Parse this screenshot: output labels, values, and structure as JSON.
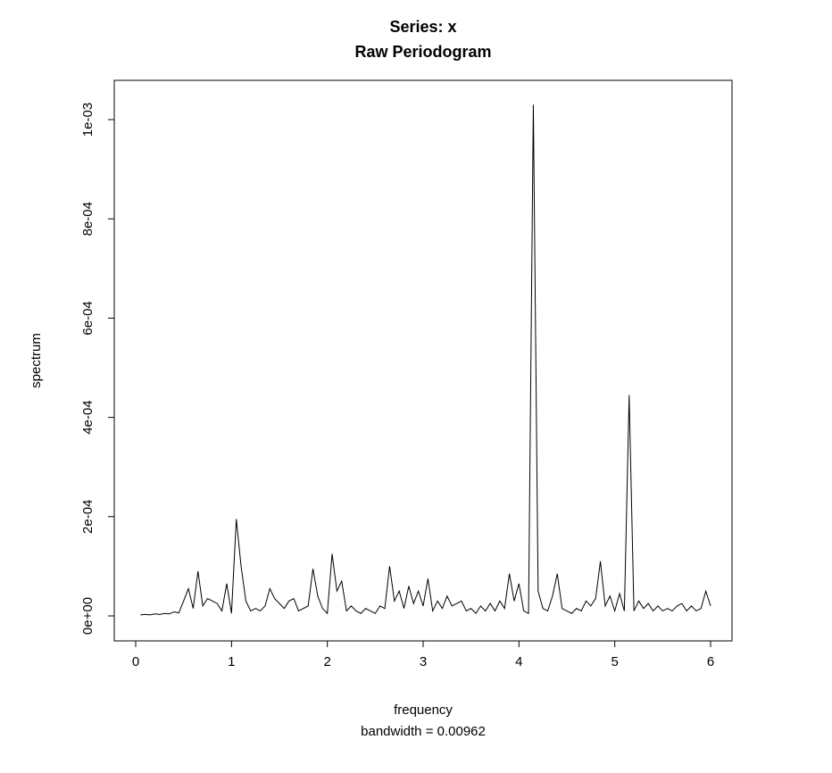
{
  "chart_data": {
    "type": "line",
    "title": "Series: x",
    "title_line2": "Raw Periodogram",
    "xlabel": "frequency",
    "ylabel": "spectrum",
    "caption": "bandwidth = 0.00962",
    "xlim": [
      0,
      6
    ],
    "ylim": [
      0,
      0.00103
    ],
    "grid": false,
    "legend": null,
    "line_color": "#000000",
    "background_color": "#ffffff",
    "x_ticks": {
      "values": [
        0,
        1,
        2,
        3,
        4,
        5,
        6
      ],
      "labels": [
        "0",
        "1",
        "2",
        "3",
        "4",
        "5",
        "6"
      ]
    },
    "y_ticks": {
      "values": [
        0,
        0.0002,
        0.0004,
        0.0006,
        0.0008,
        0.001
      ],
      "labels": [
        "0e+00",
        "2e-04",
        "4e-04",
        "6e-04",
        "8e-04",
        "1e-03"
      ]
    },
    "x": [
      0.05,
      0.1,
      0.15,
      0.2,
      0.25,
      0.3,
      0.35,
      0.4,
      0.45,
      0.5,
      0.55,
      0.6,
      0.65,
      0.7,
      0.75,
      0.8,
      0.85,
      0.9,
      0.95,
      1,
      1.05,
      1.1,
      1.15,
      1.2,
      1.25,
      1.3,
      1.35,
      1.4,
      1.45,
      1.5,
      1.55,
      1.6,
      1.65,
      1.7,
      1.75,
      1.8,
      1.85,
      1.9,
      1.95,
      2,
      2.05,
      2.1,
      2.15,
      2.2,
      2.25,
      2.3,
      2.35,
      2.4,
      2.45,
      2.5,
      2.55,
      2.6,
      2.65,
      2.7,
      2.75,
      2.8,
      2.85,
      2.9,
      2.95,
      3,
      3.05,
      3.1,
      3.15,
      3.2,
      3.25,
      3.3,
      3.35,
      3.4,
      3.45,
      3.5,
      3.55,
      3.6,
      3.65,
      3.7,
      3.75,
      3.8,
      3.85,
      3.9,
      3.95,
      4,
      4.05,
      4.1,
      4.15,
      4.2,
      4.25,
      4.3,
      4.35,
      4.4,
      4.45,
      4.5,
      4.55,
      4.6,
      4.65,
      4.7,
      4.75,
      4.8,
      4.85,
      4.9,
      4.95,
      5,
      5.05,
      5.1,
      5.15,
      5.2,
      5.25,
      5.3,
      5.35,
      5.4,
      5.45,
      5.5,
      5.55,
      5.6,
      5.65,
      5.7,
      5.75,
      5.8,
      5.85,
      5.9,
      5.95,
      6
    ],
    "y": [
      2e-06,
      3e-06,
      2e-06,
      4e-06,
      3e-06,
      5e-06,
      4e-06,
      8e-06,
      6e-06,
      3e-05,
      5.5e-05,
      1.5e-05,
      9e-05,
      2e-05,
      3.5e-05,
      3e-05,
      2.5e-05,
      1e-05,
      6.5e-05,
      5e-06,
      0.000195,
      0.0001,
      3e-05,
      1e-05,
      1.5e-05,
      1e-05,
      2e-05,
      5.5e-05,
      3.5e-05,
      2.5e-05,
      1.5e-05,
      3e-05,
      3.5e-05,
      1e-05,
      1.5e-05,
      2e-05,
      9.5e-05,
      4e-05,
      1.5e-05,
      5e-06,
      0.000125,
      5e-05,
      7e-05,
      1e-05,
      2e-05,
      1e-05,
      5e-06,
      1.5e-05,
      1e-05,
      5e-06,
      2e-05,
      1.5e-05,
      0.0001,
      3e-05,
      5e-05,
      1.5e-05,
      6e-05,
      2.5e-05,
      5e-05,
      2e-05,
      7.5e-05,
      1e-05,
      3e-05,
      1.5e-05,
      4e-05,
      2e-05,
      2.5e-05,
      3e-05,
      1e-05,
      1.5e-05,
      5e-06,
      2e-05,
      1e-05,
      2.5e-05,
      1e-05,
      3e-05,
      1.5e-05,
      8.5e-05,
      3e-05,
      6.5e-05,
      1e-05,
      5e-06,
      0.00103,
      5e-05,
      1.5e-05,
      1e-05,
      4e-05,
      8.5e-05,
      1.5e-05,
      1e-05,
      5e-06,
      1.5e-05,
      1e-05,
      3e-05,
      2e-05,
      3.5e-05,
      0.00011,
      2e-05,
      4e-05,
      1e-05,
      4.5e-05,
      1e-05,
      0.000445,
      1e-05,
      3e-05,
      1.5e-05,
      2.5e-05,
      1e-05,
      2e-05,
      1e-05,
      1.5e-05,
      1e-05,
      2e-05,
      2.5e-05,
      1e-05,
      2e-05,
      1e-05,
      1.5e-05,
      5e-05,
      2e-05
    ]
  }
}
